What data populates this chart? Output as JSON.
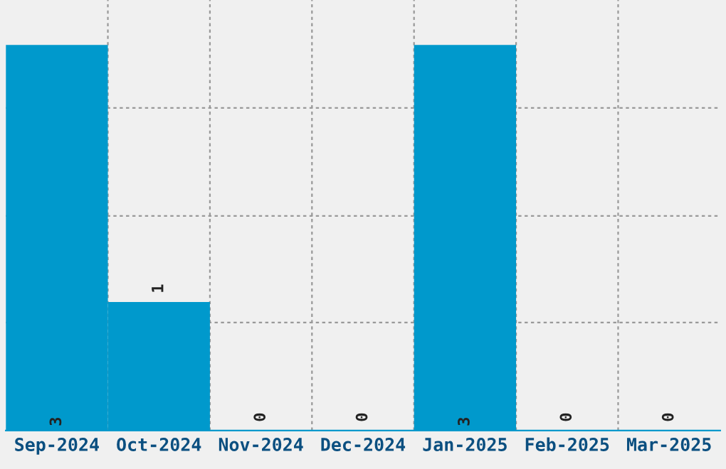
{
  "chart_data": {
    "type": "bar",
    "categories": [
      "Sep-2024",
      "Oct-2024",
      "Nov-2024",
      "Dec-2024",
      "Jan-2025",
      "Feb-2025",
      "Mar-2025"
    ],
    "values": [
      3,
      1,
      0,
      0,
      3,
      0,
      0
    ],
    "color": "#0099cc",
    "data_labels": true,
    "relative": false,
    "ylim": [
      0,
      3.35
    ],
    "yticks": [
      {
        "value": 0.84,
        "label": null
      },
      {
        "value": 1.67,
        "label": null
      },
      {
        "value": 2.51,
        "label": null
      }
    ],
    "grid": true,
    "tick_labels": "x"
  }
}
